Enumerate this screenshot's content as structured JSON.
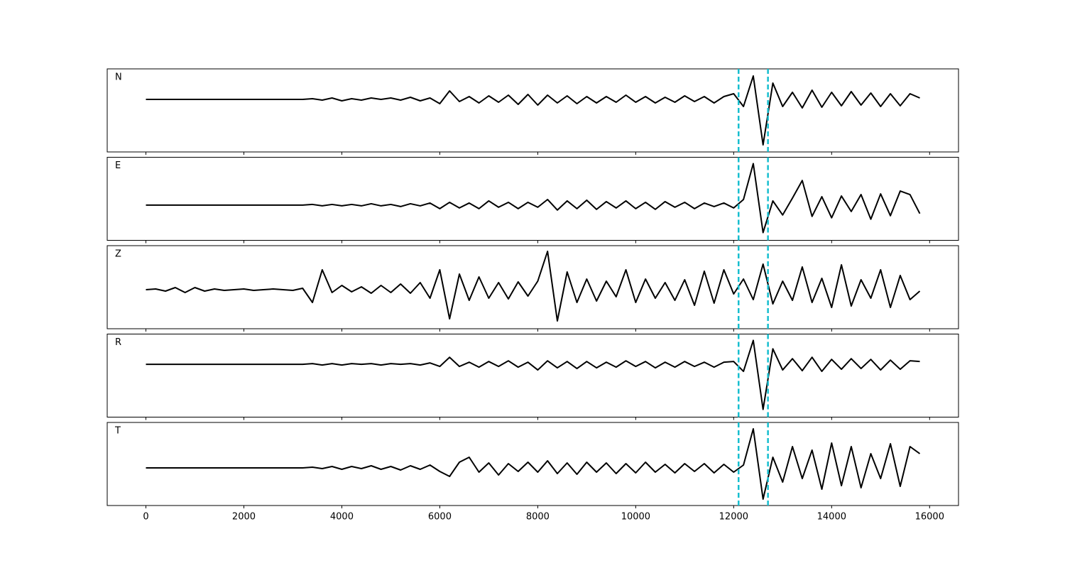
{
  "chart_data": {
    "type": "line",
    "x": [
      0,
      200,
      400,
      600,
      800,
      1000,
      1200,
      1400,
      1600,
      1800,
      2000,
      2200,
      2400,
      2600,
      2800,
      3000,
      3200,
      3400,
      3600,
      3800,
      4000,
      4200,
      4400,
      4600,
      4800,
      5000,
      5200,
      5400,
      5600,
      5800,
      6000,
      6200,
      6400,
      6600,
      6800,
      7000,
      7200,
      7400,
      7600,
      7800,
      8000,
      8200,
      8400,
      8600,
      8800,
      9000,
      9200,
      9400,
      9600,
      9800,
      10000,
      10200,
      10400,
      10600,
      10800,
      11000,
      11200,
      11400,
      11600,
      11800,
      12000,
      12200,
      12400,
      12600,
      12800,
      13000,
      13200,
      13400,
      13600,
      13800,
      14000,
      14200,
      14400,
      14600,
      14800,
      15000,
      15200,
      15400,
      15600,
      15800
    ],
    "series": [
      {
        "name": "N",
        "color": "#000000",
        "ylim": [
          -7.4,
          4.3
        ],
        "values": [
          0,
          0,
          0,
          0,
          0,
          0,
          0,
          0,
          0,
          0,
          0,
          0,
          0,
          0,
          0,
          0,
          0,
          0.1,
          -0.1,
          0.2,
          -0.2,
          0.1,
          -0.1,
          0.2,
          0,
          0.2,
          -0.1,
          0.3,
          -0.2,
          0.2,
          -0.6,
          1.2,
          -0.3,
          0.4,
          -0.5,
          0.5,
          -0.4,
          0.6,
          -0.7,
          0.7,
          -0.8,
          0.6,
          -0.5,
          0.5,
          -0.6,
          0.4,
          -0.5,
          0.4,
          -0.4,
          0.6,
          -0.4,
          0.4,
          -0.5,
          0.3,
          -0.4,
          0.5,
          -0.3,
          0.4,
          -0.5,
          0.4,
          0.8,
          -1,
          3.3,
          -6.4,
          2.3,
          -1,
          1,
          -1.2,
          1.3,
          -1.1,
          1,
          -0.9,
          1.1,
          -0.8,
          0.9,
          -1,
          0.8,
          -0.9,
          0.8,
          0.2
        ]
      },
      {
        "name": "E",
        "color": "#000000",
        "ylim": [
          -5,
          6.8
        ],
        "values": [
          0,
          0,
          0,
          0,
          0,
          0,
          0,
          0,
          0,
          0,
          0,
          0,
          0,
          0,
          0,
          0,
          0,
          0.1,
          -0.1,
          0.1,
          -0.1,
          0.1,
          -0.1,
          0.2,
          -0.1,
          0.1,
          -0.2,
          0.2,
          -0.1,
          0.3,
          -0.5,
          0.4,
          -0.4,
          0.3,
          -0.5,
          0.6,
          -0.3,
          0.4,
          -0.5,
          0.4,
          -0.3,
          0.8,
          -0.7,
          0.6,
          -0.5,
          0.7,
          -0.6,
          0.5,
          -0.4,
          0.6,
          -0.5,
          0.4,
          -0.6,
          0.5,
          -0.3,
          0.4,
          -0.5,
          0.3,
          -0.2,
          0.3,
          -0.4,
          0.8,
          5.9,
          -3.9,
          0.6,
          -1.4,
          1,
          3.5,
          -1.6,
          1.2,
          -1.8,
          1.3,
          -0.9,
          1.5,
          -2,
          1.6,
          -1.5,
          2,
          1.5,
          -1.2
        ]
      },
      {
        "name": "Z",
        "color": "#000000",
        "ylim": [
          -5.5,
          6.2
        ],
        "values": [
          0,
          0.1,
          -0.2,
          0.3,
          -0.4,
          0.3,
          -0.2,
          0.1,
          -0.1,
          0,
          0.1,
          -0.1,
          0,
          0.1,
          0,
          -0.1,
          0.2,
          -1.8,
          2.8,
          -0.4,
          0.6,
          -0.3,
          0.4,
          -0.5,
          0.6,
          -0.4,
          0.8,
          -0.5,
          1,
          -1.2,
          2.8,
          -4.1,
          2.2,
          -1.5,
          1.8,
          -1.2,
          1,
          -1.3,
          1.1,
          -0.9,
          1.2,
          5.4,
          -4.4,
          2.5,
          -1.8,
          1.5,
          -1.6,
          1.2,
          -1,
          2.8,
          -1.8,
          1.5,
          -1.2,
          1,
          -1.5,
          1.4,
          -2.2,
          2.6,
          -1.9,
          2.8,
          -0.6,
          1.5,
          -1.4,
          3.6,
          -2,
          1.2,
          -1.5,
          3.2,
          -1.8,
          1.6,
          -2.5,
          3.5,
          -2.3,
          1.4,
          -1.2,
          2.8,
          -2.5,
          2,
          -1.4,
          -0.2
        ]
      },
      {
        "name": "R",
        "color": "#000000",
        "ylim": [
          -7.5,
          4.3
        ],
        "values": [
          0,
          0,
          0,
          0,
          0,
          0,
          0,
          0,
          0,
          0,
          0,
          0,
          0,
          0,
          0,
          0,
          0,
          0.1,
          -0.1,
          0.1,
          -0.1,
          0.1,
          0,
          0.1,
          -0.1,
          0.1,
          0,
          0.1,
          -0.1,
          0.2,
          -0.3,
          1,
          -0.3,
          0.3,
          -0.4,
          0.4,
          -0.3,
          0.5,
          -0.4,
          0.3,
          -0.8,
          0.5,
          -0.5,
          0.4,
          -0.6,
          0.4,
          -0.5,
          0.3,
          -0.4,
          0.5,
          -0.3,
          0.4,
          -0.5,
          0.3,
          -0.4,
          0.4,
          -0.3,
          0.3,
          -0.4,
          0.3,
          0.4,
          -1,
          3.4,
          -6.4,
          2.2,
          -0.8,
          0.8,
          -0.9,
          1,
          -1,
          0.7,
          -0.7,
          0.8,
          -0.6,
          0.7,
          -0.8,
          0.6,
          -0.7,
          0.5,
          0.4
        ]
      },
      {
        "name": "T",
        "color": "#000000",
        "ylim": [
          -5.3,
          6.4
        ],
        "values": [
          0,
          0,
          0,
          0,
          0,
          0,
          0,
          0,
          0,
          0,
          0,
          0,
          0,
          0,
          0,
          0,
          0,
          0.1,
          -0.1,
          0.2,
          -0.2,
          0.2,
          -0.1,
          0.3,
          -0.2,
          0.2,
          -0.3,
          0.3,
          -0.2,
          0.4,
          -0.5,
          -1.2,
          0.8,
          1.5,
          -0.6,
          0.7,
          -1,
          0.6,
          -0.5,
          0.8,
          -0.6,
          1,
          -0.8,
          0.7,
          -0.9,
          0.8,
          -0.6,
          0.7,
          -0.8,
          0.6,
          -0.7,
          0.8,
          -0.6,
          0.5,
          -0.7,
          0.6,
          -0.5,
          0.6,
          -0.7,
          0.5,
          -0.6,
          0.4,
          5.5,
          -4.4,
          1.5,
          -2,
          3,
          -1.5,
          2.5,
          -3,
          3.5,
          -2.5,
          3,
          -2.8,
          2,
          -1.5,
          3.4,
          -2.6,
          3,
          2
        ]
      }
    ],
    "xlim": [
      -790,
      16590
    ],
    "xticks": [
      0,
      2000,
      4000,
      6000,
      8000,
      10000,
      12000,
      14000,
      16000
    ],
    "vlines": [
      12100,
      12700
    ],
    "vline_color": "#17becf"
  }
}
